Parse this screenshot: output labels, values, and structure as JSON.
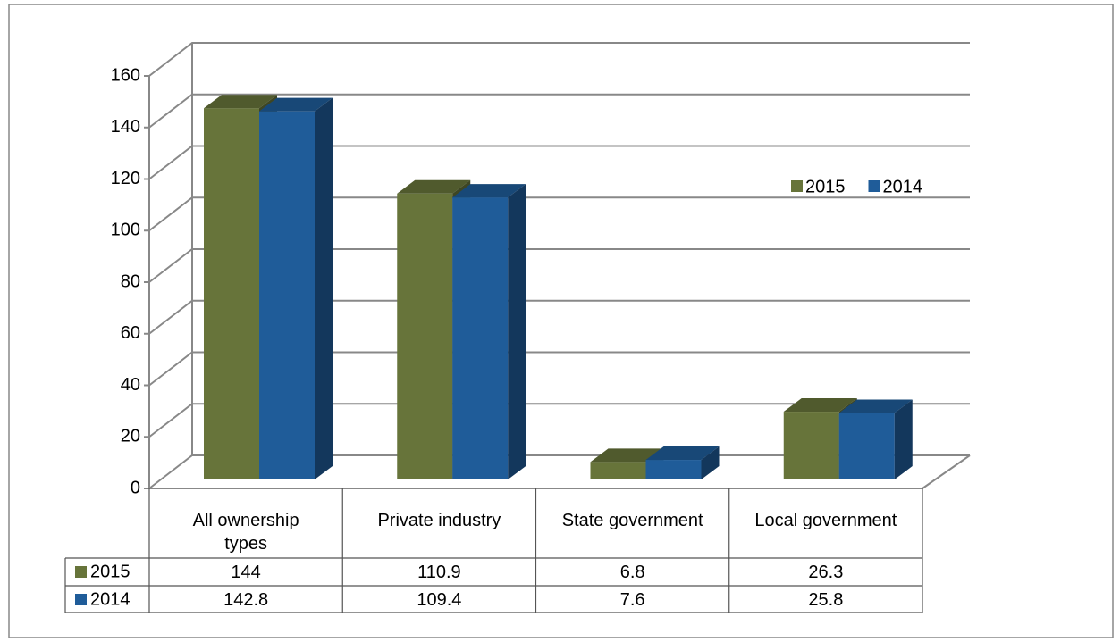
{
  "chart_data": {
    "type": "bar3d",
    "categories": [
      "All ownership types",
      "Private industry",
      "State government",
      "Local government"
    ],
    "series": [
      {
        "name": "2015",
        "color": "#67743a",
        "values": [
          144,
          110.9,
          6.8,
          26.3
        ]
      },
      {
        "name": "2014",
        "color": "#1f5c99",
        "values": [
          142.8,
          109.4,
          7.6,
          25.8
        ]
      }
    ],
    "ylim": [
      0,
      160
    ],
    "yticks": [
      0,
      20,
      40,
      60,
      80,
      100,
      120,
      140,
      160
    ],
    "grid": true,
    "legend": "right",
    "data_table": true
  }
}
